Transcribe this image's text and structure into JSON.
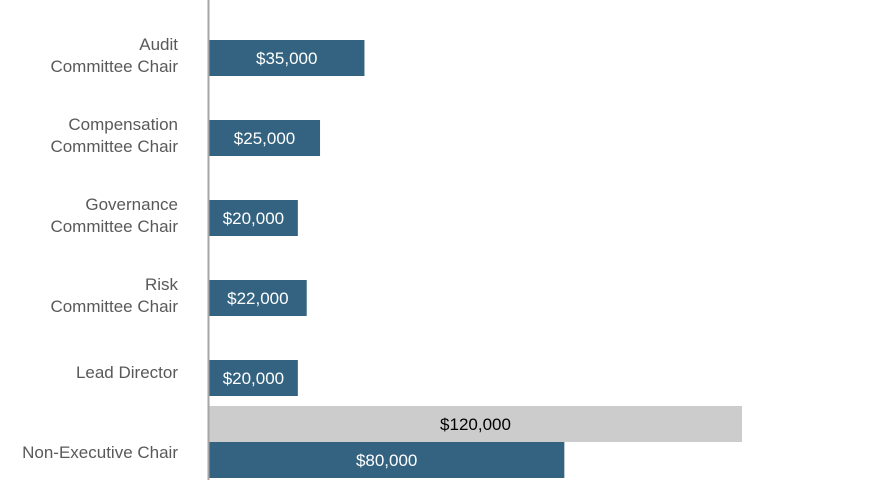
{
  "chart_data": {
    "type": "bar",
    "orientation": "horizontal",
    "categories": [
      [
        "Audit",
        "Committee Chair"
      ],
      [
        "Compensation",
        "Committee Chair"
      ],
      [
        "Governance",
        "Committee Chair"
      ],
      [
        "Risk",
        "Committee Chair"
      ],
      [
        "Lead Director"
      ],
      [
        "Non-Executive Chair"
      ]
    ],
    "series": [
      {
        "values": [
          35000,
          25000,
          20000,
          22000,
          20000,
          80000
        ],
        "labels": [
          "$35,000",
          "$25,000",
          "$20,000",
          "$22,000",
          "$20,000",
          "$80,000"
        ],
        "color": "#336380",
        "label_color": "#ffffff"
      },
      {
        "values": [
          null,
          null,
          null,
          null,
          null,
          120000
        ],
        "labels": [
          null,
          null,
          null,
          null,
          null,
          "$120,000"
        ],
        "color": "#cccccc",
        "label_color": "#000000"
      }
    ],
    "xlim": [
      0,
      120000
    ],
    "grid": false,
    "legend": "none",
    "axis_color": "#a6a6a6",
    "label_color": "#595959"
  }
}
